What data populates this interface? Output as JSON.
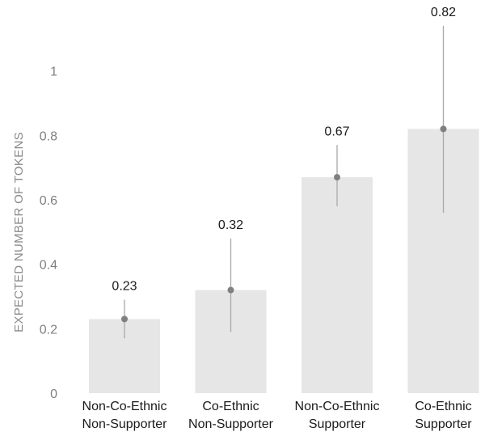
{
  "chart_data": {
    "type": "bar",
    "categories": [
      [
        "Non-Co-Ethnic",
        "Non-Supporter"
      ],
      [
        "Co-Ethnic",
        "Non-Supporter"
      ],
      [
        "Non-Co-Ethnic",
        "Supporter"
      ],
      [
        "Co-Ethnic",
        "Supporter"
      ]
    ],
    "values": [
      0.23,
      0.32,
      0.67,
      0.82
    ],
    "value_labels": [
      "0.23",
      "0.32",
      "0.67",
      "0.82"
    ],
    "ci_low": [
      0.17,
      0.19,
      0.58,
      0.56
    ],
    "ci_high": [
      0.29,
      0.48,
      0.77,
      1.14
    ],
    "ylabel": "EXPECTED NUMBER OF TOKENS",
    "xlabel": "",
    "ylim": [
      0,
      1.2
    ],
    "yticks": [
      0,
      0.2,
      0.4,
      0.6,
      0.8,
      1
    ],
    "ytick_labels": [
      "0",
      "0.2",
      "0.4",
      "0.6",
      "0.8",
      "1"
    ],
    "grid": false,
    "colors": {
      "bar": "#e6e6e6",
      "errorbar": "#a8a8a8",
      "point": "#808080"
    }
  }
}
